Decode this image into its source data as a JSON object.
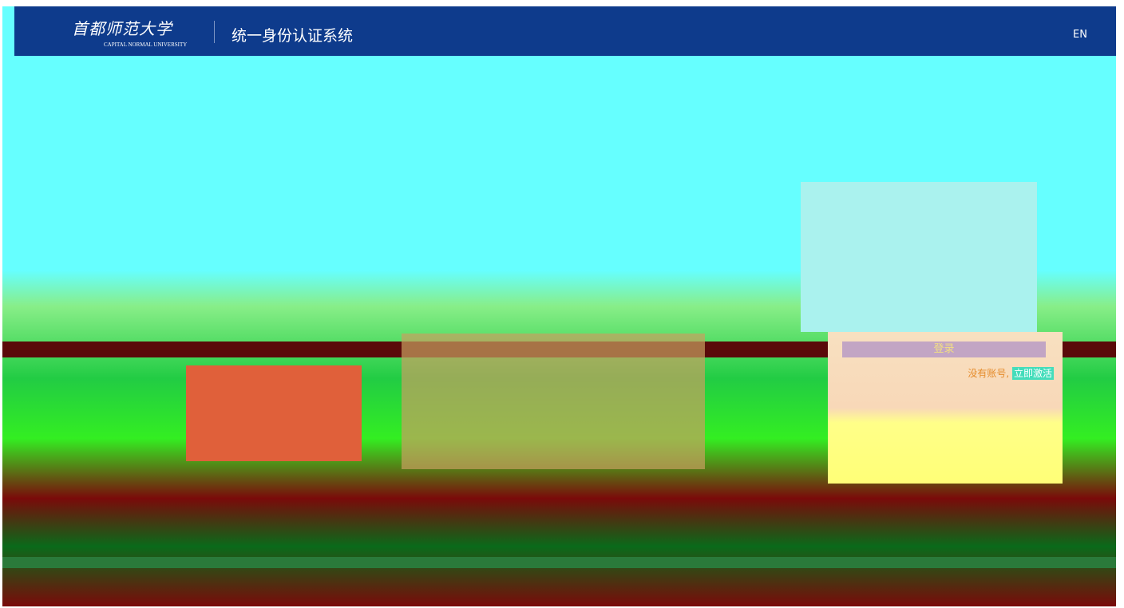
{
  "header": {
    "logo_text": "首都师范大学",
    "logo_subtext": "CAPITAL NORMAL UNIVERSITY",
    "system_title": "统一身份认证系统",
    "language": "EN"
  },
  "login": {
    "button": "登录",
    "no_account": "没有账号,",
    "activate": "立即激活"
  }
}
